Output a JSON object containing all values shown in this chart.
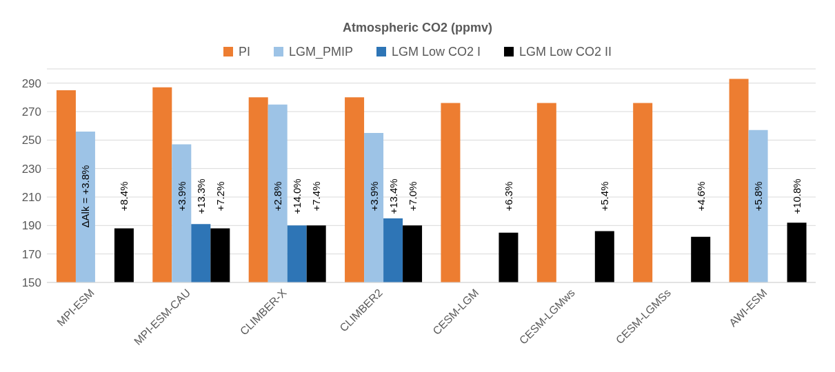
{
  "chart_data": {
    "type": "bar",
    "title": "Atmospheric CO2 (ppmv)",
    "categories": [
      "MPI-ESM",
      "MPI-ESM-CAU",
      "CLIMBER-X",
      "CLIMBER2",
      "CESM-LGM",
      "CESM-LGMws",
      "CESM-LGMSs",
      "AWI-ESM"
    ],
    "series": [
      {
        "name": "PI",
        "color": "#ed7d31",
        "values": [
          285,
          287,
          280,
          280,
          276,
          276,
          276,
          293
        ]
      },
      {
        "name": "LGM_PMIP",
        "color": "#9dc3e6",
        "values": [
          256,
          247,
          275,
          255,
          null,
          null,
          null,
          257
        ]
      },
      {
        "name": "LGM Low CO2 I",
        "color": "#2e75b6",
        "values": [
          null,
          191,
          190,
          195,
          null,
          null,
          null,
          null
        ]
      },
      {
        "name": "LGM Low CO2 II",
        "color": "#000000",
        "values": [
          188,
          188,
          190,
          190,
          185,
          186,
          182,
          192
        ]
      }
    ],
    "annotations": [
      "ΔAlk = +3.8%",
      "+8.4%",
      "+3.9%",
      "+13.3%",
      "+7.2%",
      "+2.8%",
      "+14.0%",
      "+7.4%",
      "+3.9%",
      "+13.4%",
      "+7.0%",
      "+6.3%",
      "+5.4%",
      "+4.6%",
      "+5.8%",
      "+10.8%"
    ],
    "ylim": [
      150,
      300
    ],
    "yticks": [
      150,
      170,
      190,
      210,
      230,
      250,
      270,
      290
    ],
    "grid": "y",
    "legend": "top"
  }
}
